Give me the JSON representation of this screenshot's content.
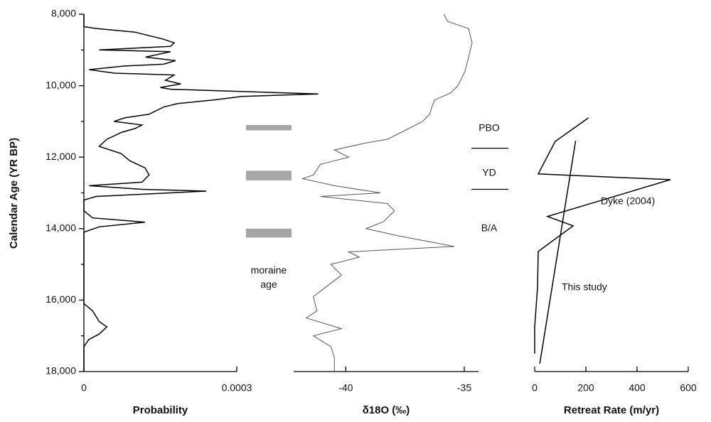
{
  "chart_data": [
    {
      "type": "line",
      "ylabel": "Calendar Age (YR BP)",
      "xlabel": "Probability",
      "ylim": [
        8000,
        18000
      ],
      "yticks": [
        {
          "value": 8000,
          "label": "8,000"
        },
        {
          "value": 10000,
          "label": "10,000"
        },
        {
          "value": 12000,
          "label": "12,000"
        },
        {
          "value": 14000,
          "label": "14,000"
        },
        {
          "value": 16000,
          "label": "16,000"
        },
        {
          "value": 18000,
          "label": "18,000"
        }
      ],
      "yminor": [
        9000,
        11000,
        13000,
        15000,
        17000
      ],
      "xlim": [
        0,
        0.0003
      ],
      "xticks": [
        0,
        0.0003
      ],
      "series": [
        {
          "color": "#000000",
          "y": [
            8000,
            8350,
            8400,
            8500,
            8700,
            8800,
            8900,
            9000,
            9050,
            9200,
            9300,
            9400,
            9450,
            9550,
            9650,
            9700,
            9850,
            9950,
            10050,
            10100,
            10230,
            10300,
            10400,
            10500,
            10600,
            10800,
            10900,
            11000,
            11100,
            11200,
            11300,
            11500,
            11700,
            11900,
            12100,
            12300,
            12500,
            12700,
            12800,
            12900,
            12950,
            13100,
            13200,
            13500,
            13700,
            13820,
            13950,
            14100,
            16100,
            16300,
            16600,
            16750,
            16950,
            17100,
            17300,
            18000
          ],
          "x": [
            0,
            0,
            2.4e-05,
            0.0001,
            0.000156,
            0.000177,
            0.00017,
            3e-05,
            0.00017,
            0.000121,
            0.00018,
            0.000156,
            8e-05,
            1e-05,
            6e-05,
            0.000177,
            0.00016,
            0.00019,
            0.00015,
            0.00017,
            0.00046,
            0.00031,
            0.000254,
            0.000184,
            0.000156,
            0.000128,
            8e-05,
            5.9e-05,
            0.000114,
            0.0001,
            7.5e-05,
            4.5e-05,
            3e-05,
            7.3e-05,
            9e-05,
            0.00012,
            0.000128,
            0.000114,
            1e-05,
            0.000114,
            0.00024,
            2.4e-05,
            0,
            0,
            1.7e-05,
            0.00012,
            3e-05,
            0,
            0,
            1.7e-05,
            3e-05,
            4.5e-05,
            3e-05,
            1e-05,
            0,
            0
          ]
        }
      ]
    },
    {
      "type": "line",
      "xlabel": "δ18O (‰)",
      "ylim": [
        8000,
        18000
      ],
      "xlim": [
        -42.2,
        -34.4
      ],
      "xticks": [
        -40,
        -35
      ],
      "series": [
        {
          "color": "#555555",
          "y": [
            8000,
            8200,
            8400,
            8800,
            9200,
            9600,
            10000,
            10200,
            10400,
            10600,
            10800,
            11000,
            11200,
            11500,
            11600,
            11800,
            12000,
            12200,
            12500,
            12600,
            12800,
            13000,
            13100,
            13300,
            13500,
            13800,
            14000,
            14200,
            14350,
            14500,
            14650,
            14800,
            15000,
            15300,
            15600,
            15900,
            16300,
            16500,
            16800,
            17000,
            17300,
            17600,
            18000
          ],
          "x": [
            -35.86,
            -35.71,
            -34.82,
            -34.67,
            -34.82,
            -34.97,
            -35.27,
            -35.57,
            -36.25,
            -36.37,
            -36.46,
            -36.76,
            -37.35,
            -38.24,
            -39.14,
            -40.48,
            -39.88,
            -41.07,
            -41.37,
            -41.82,
            -40.48,
            -38.54,
            -41.07,
            -38.24,
            -37.95,
            -38.39,
            -39.14,
            -37.8,
            -36.61,
            -35.42,
            -39.88,
            -39.43,
            -40.63,
            -40.18,
            -40.77,
            -41.37,
            -41.22,
            -41.67,
            -40.18,
            -41.37,
            -40.63,
            -40.48,
            -40.48
          ]
        }
      ],
      "bands": {
        "label": "moraine age",
        "color": "#a6a6a6",
        "ranges": [
          [
            11100,
            11250
          ],
          [
            12380,
            12650
          ],
          [
            14000,
            14250
          ]
        ]
      },
      "periods": {
        "labels": [
          "PBO",
          "YD",
          "B/A"
        ],
        "label_ages": [
          11200,
          12450,
          14000
        ],
        "boundaries": [
          11750,
          12900
        ]
      }
    },
    {
      "type": "line",
      "xlabel": "Retreat Rate (m/yr)",
      "ylim": [
        8000,
        18000
      ],
      "xlim": [
        0,
        600
      ],
      "xticks": [
        0,
        200,
        400,
        600
      ],
      "series": [
        {
          "name": "Dyke (2004)",
          "color": "#000000",
          "y": [
            10900,
            11560,
            12470,
            12630,
            13660,
            13920,
            14640,
            15650,
            16750,
            17500
          ],
          "x": [
            210,
            80,
            14,
            530,
            50,
            150,
            14,
            11,
            0,
            0
          ]
        },
        {
          "name": "This study",
          "color": "#000000",
          "y": [
            11540,
            17780
          ],
          "x": [
            160,
            20
          ]
        }
      ]
    }
  ]
}
